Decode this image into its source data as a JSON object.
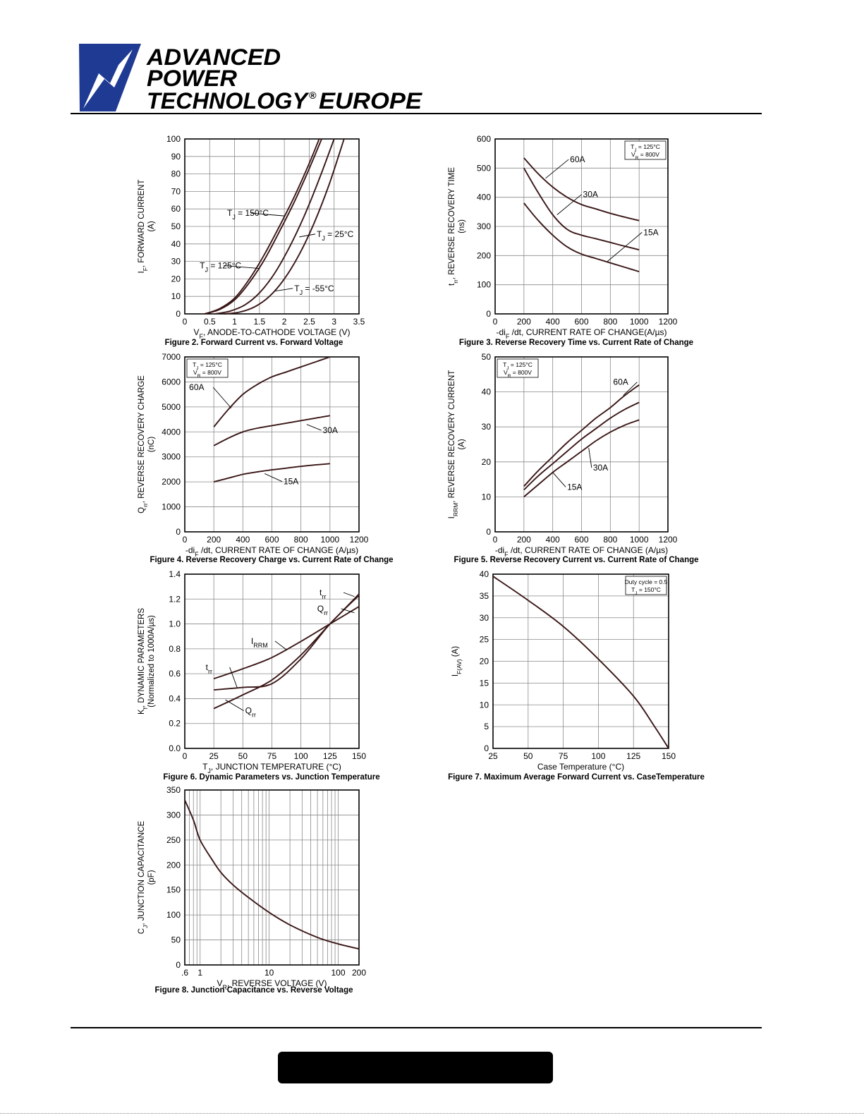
{
  "header": {
    "logo_lines": [
      "ADVANCED",
      "POWER",
      "TECHNOLOGY",
      "EUROPE"
    ],
    "registered_mark": "®",
    "brand_color": "#1f3a93"
  },
  "chart_data": [
    {
      "id": "fig2",
      "type": "line",
      "caption": "Figure 2. Forward Current vs. Forward Voltage",
      "ylabel_lines": [
        "I_F, FORWARD CURRENT",
        "(A)"
      ],
      "xlabel": "V_F, ANODE-TO-CATHODE VOLTAGE (V)",
      "xlim": [
        0,
        3.5
      ],
      "ylim": [
        0,
        100
      ],
      "xticks": [
        0,
        0.5,
        1,
        1.5,
        2,
        2.5,
        3,
        3.5
      ],
      "xtick_labels": [
        "0",
        "0.5",
        "1",
        "1.5",
        "2",
        "2.5",
        "3",
        "3.5"
      ],
      "yticks": [
        0,
        10,
        20,
        30,
        40,
        50,
        60,
        70,
        80,
        90,
        100
      ],
      "grid": true,
      "series": [
        {
          "name": "T_J = 150°C",
          "x": [
            0.4,
            0.7,
            1.0,
            1.3,
            1.6,
            1.9,
            2.2,
            2.5,
            2.7
          ],
          "y": [
            0,
            3,
            9,
            20,
            34,
            50,
            67,
            86,
            100
          ]
        },
        {
          "name": "T_J = 125°C",
          "x": [
            0.4,
            0.7,
            1.0,
            1.3,
            1.6,
            1.9,
            2.2,
            2.5,
            2.75
          ],
          "y": [
            0,
            2.5,
            8,
            18,
            31,
            47,
            64,
            83,
            100
          ]
        },
        {
          "name": "T_J = 25°C",
          "x": [
            0.6,
            0.9,
            1.2,
            1.5,
            1.8,
            2.1,
            2.4,
            2.7,
            3.0
          ],
          "y": [
            0,
            1.5,
            5,
            12,
            23,
            38,
            56,
            77,
            100
          ]
        },
        {
          "name": "T_J = -55°C",
          "x": [
            0.8,
            1.1,
            1.4,
            1.7,
            2.0,
            2.3,
            2.6,
            2.9,
            3.2
          ],
          "y": [
            0,
            1,
            4,
            10,
            20,
            34,
            52,
            74,
            100
          ]
        }
      ],
      "annotations": [
        {
          "text": "T_J = 150°C",
          "x": 0.85,
          "y": 56,
          "tx": 2.0,
          "ty": 56
        },
        {
          "text": "T_J = 25°C",
          "x": 2.65,
          "y": 44,
          "tx": 2.3,
          "ty": 44
        },
        {
          "text": "T_J = 125°C",
          "x": 0.3,
          "y": 26,
          "tx": 1.5,
          "ty": 26
        },
        {
          "text": "T_J = -55°C",
          "x": 2.2,
          "y": 13,
          "tx": 1.8,
          "ty": 13
        }
      ]
    },
    {
      "id": "fig3",
      "type": "line",
      "caption": "Figure 3. Reverse Recovery Time vs. Current Rate of Change",
      "ylabel_lines": [
        "t_rr, REVERSE RECOVERY TIME",
        "(ns)"
      ],
      "xlabel": "-di_F /dt, CURRENT RATE OF CHANGE(A/µs)",
      "xlim": [
        0,
        1200
      ],
      "ylim": [
        0,
        600
      ],
      "xticks": [
        0,
        200,
        400,
        600,
        800,
        1000,
        1200
      ],
      "yticks": [
        0,
        100,
        200,
        300,
        400,
        500,
        600
      ],
      "grid": true,
      "legend_box": [
        "T_J = 125°C",
        "V_R = 800V"
      ],
      "series": [
        {
          "name": "60A",
          "x": [
            200,
            300,
            400,
            500,
            600,
            700,
            800,
            900,
            1000
          ],
          "y": [
            535,
            480,
            435,
            400,
            375,
            360,
            345,
            332,
            320
          ]
        },
        {
          "name": "30A",
          "x": [
            200,
            300,
            400,
            500,
            600,
            700,
            800,
            900,
            1000
          ],
          "y": [
            500,
            415,
            340,
            290,
            270,
            258,
            245,
            232,
            220
          ]
        },
        {
          "name": "15A",
          "x": [
            200,
            300,
            400,
            500,
            600,
            700,
            800,
            900,
            1000
          ],
          "y": [
            380,
            320,
            270,
            230,
            205,
            190,
            175,
            160,
            145
          ]
        }
      ],
      "annotations": [
        {
          "text": "60A",
          "x": 520,
          "y": 520,
          "tx": 350,
          "ty": 465
        },
        {
          "text": "30A",
          "x": 610,
          "y": 400,
          "tx": 430,
          "ty": 340
        },
        {
          "text": "15A",
          "x": 1030,
          "y": 270,
          "tx": 780,
          "ty": 180
        }
      ]
    },
    {
      "id": "fig4",
      "type": "line",
      "caption": "Figure 4. Reverse Recovery Charge vs. Current Rate of Change",
      "ylabel_lines": [
        "Q_rr, REVERSE RECOVERY CHARGE",
        "(nC)"
      ],
      "xlabel": "-di_F /dt, CURRENT RATE OF CHANGE (A/µs)",
      "xlim": [
        0,
        1200
      ],
      "ylim": [
        0,
        7000
      ],
      "xticks": [
        0,
        200,
        400,
        600,
        800,
        1000,
        1200
      ],
      "yticks": [
        0,
        1000,
        2000,
        3000,
        4000,
        5000,
        6000,
        7000
      ],
      "grid": true,
      "legend_box": [
        "T_J = 125°C",
        "V_R = 800V"
      ],
      "series": [
        {
          "name": "60A",
          "x": [
            200,
            300,
            400,
            500,
            600,
            700,
            800,
            900,
            1000
          ],
          "y": [
            4200,
            4900,
            5500,
            5900,
            6200,
            6400,
            6600,
            6800,
            7000
          ]
        },
        {
          "name": "30A",
          "x": [
            200,
            300,
            400,
            500,
            600,
            700,
            800,
            900,
            1000
          ],
          "y": [
            3450,
            3750,
            4000,
            4150,
            4250,
            4350,
            4450,
            4550,
            4650
          ]
        },
        {
          "name": "15A",
          "x": [
            200,
            300,
            400,
            500,
            600,
            700,
            800,
            900,
            1000
          ],
          "y": [
            2000,
            2150,
            2300,
            2400,
            2480,
            2550,
            2620,
            2680,
            2730
          ]
        }
      ],
      "annotations": [
        {
          "text": "60A",
          "x": 30,
          "y": 5670,
          "tx": 320,
          "ty": 4950
        },
        {
          "text": "30A",
          "x": 950,
          "y": 3950,
          "tx": 840,
          "ty": 4300
        },
        {
          "text": "15A",
          "x": 680,
          "y": 1900,
          "tx": 550,
          "ty": 2330
        }
      ]
    },
    {
      "id": "fig5",
      "type": "line",
      "caption": "Figure 5. Reverse Recovery Current vs. Current Rate of Change",
      "ylabel_lines": [
        "I_RRM, REVERSE RECOVERY CURRENT",
        "(A)"
      ],
      "xlabel": "-di_F /dt, CURRENT RATE OF CHANGE (A/µs)",
      "xlim": [
        0,
        1200
      ],
      "ylim": [
        0,
        50
      ],
      "xticks": [
        0,
        200,
        400,
        600,
        800,
        1000,
        1200
      ],
      "yticks": [
        0,
        10,
        20,
        30,
        40,
        50
      ],
      "grid": true,
      "legend_box": [
        "T_J = 125°C",
        "V_R = 800V"
      ],
      "series": [
        {
          "name": "60A",
          "x": [
            200,
            300,
            400,
            500,
            600,
            700,
            800,
            900,
            1000
          ],
          "y": [
            13,
            17.5,
            21.5,
            25.5,
            29,
            32.5,
            35.5,
            39,
            42
          ]
        },
        {
          "name": "30A",
          "x": [
            200,
            300,
            400,
            500,
            600,
            700,
            800,
            900,
            1000
          ],
          "y": [
            12,
            16,
            19.5,
            23,
            26.5,
            29.5,
            32.5,
            35,
            37
          ]
        },
        {
          "name": "15A",
          "x": [
            200,
            300,
            400,
            500,
            600,
            700,
            800,
            900,
            1000
          ],
          "y": [
            10,
            13.5,
            17,
            20,
            23,
            26,
            28.5,
            30.5,
            32
          ]
        }
      ],
      "annotations": [
        {
          "text": "60A",
          "x": 820,
          "y": 42,
          "tx": 890,
          "ty": 39
        },
        {
          "text": "30A",
          "x": 680,
          "y": 17.5,
          "tx": 650,
          "ty": 24
        },
        {
          "text": "15A",
          "x": 500,
          "y": 12,
          "tx": 400,
          "ty": 17
        }
      ]
    },
    {
      "id": "fig6",
      "type": "line",
      "caption": "Figure 6. Dynamic Parameters vs. Junction Temperature",
      "ylabel_lines": [
        "K_f, DYNAMIC PARAMETERS",
        "(Normalized to 1000A/µs)"
      ],
      "xlabel": "T_J, JUNCTION TEMPERATURE (°C)",
      "xlim": [
        0,
        150
      ],
      "ylim": [
        0,
        1.4
      ],
      "xticks": [
        0,
        25,
        50,
        75,
        100,
        125,
        150
      ],
      "yticks": [
        0.0,
        0.2,
        0.4,
        0.6,
        0.8,
        1.0,
        1.2,
        1.4
      ],
      "ytick_labels": [
        "0.0",
        "0.2",
        "0.4",
        "0.6",
        "0.8",
        "1.0",
        "1.2",
        "1.4"
      ],
      "grid": true,
      "series": [
        {
          "name": "I_RRM",
          "x": [
            25,
            50,
            75,
            100,
            125,
            150
          ],
          "y": [
            0.56,
            0.64,
            0.73,
            0.86,
            1.0,
            1.14
          ]
        },
        {
          "name": "t_rr",
          "x": [
            25,
            50,
            75,
            100,
            125,
            150
          ],
          "y": [
            0.47,
            0.49,
            0.52,
            0.72,
            1.0,
            1.23
          ]
        },
        {
          "name": "Q_rr",
          "x": [
            25,
            50,
            75,
            100,
            125,
            150
          ],
          "y": [
            0.32,
            0.43,
            0.55,
            0.75,
            1.0,
            1.24
          ]
        }
      ],
      "annotations": [
        {
          "text": "t_rr",
          "x": 116,
          "y": 1.23,
          "tx": 146,
          "ty": 1.22
        },
        {
          "text": "Q_rr",
          "x": 114,
          "y": 1.1,
          "tx": 146,
          "ty": 1.09
        },
        {
          "text": "I_RRM",
          "x": 57,
          "y": 0.84,
          "tx": 88,
          "ty": 0.79
        },
        {
          "text": "t_rr",
          "x": 18,
          "y": 0.63,
          "tx": 45,
          "ty": 0.49
        },
        {
          "text": "Q_rr",
          "x": 52,
          "y": 0.28,
          "tx": 35,
          "ty": 0.39
        }
      ]
    },
    {
      "id": "fig7",
      "type": "line",
      "caption": "Figure 7. Maximum Average Forward Current vs. CaseTemperature",
      "ylabel_lines": [
        "I_F(AV) (A)"
      ],
      "xlabel": "Case Temperature (°C)",
      "xlim": [
        25,
        150
      ],
      "ylim": [
        0,
        40
      ],
      "xticks": [
        25,
        50,
        75,
        100,
        125,
        150
      ],
      "yticks": [
        0,
        5,
        10,
        15,
        20,
        25,
        30,
        35,
        40
      ],
      "grid": true,
      "legend_box": [
        "Duty cycle = 0.5",
        "T_J = 150°C"
      ],
      "series": [
        {
          "name": "",
          "x": [
            25,
            50,
            75,
            100,
            125,
            140,
            150
          ],
          "y": [
            39.5,
            34,
            28,
            20.5,
            12,
            5,
            0
          ]
        }
      ],
      "annotations": []
    },
    {
      "id": "fig8",
      "type": "line",
      "caption": "Figure 8.  Junction Capacitance vs. Reverse Voltage",
      "ylabel_lines": [
        "C_J, JUNCTION CAPACITANCE",
        "(pF)"
      ],
      "xlabel": "V_R, REVERSE VOLTAGE (V)",
      "xscale": "log",
      "xlim": [
        0.6,
        200
      ],
      "ylim": [
        0,
        350
      ],
      "xticks": [
        0.6,
        1,
        10,
        100,
        200
      ],
      "xtick_labels": [
        ".6",
        "1",
        "10",
        "100",
        "200"
      ],
      "yticks": [
        0,
        50,
        100,
        150,
        200,
        250,
        300,
        350
      ],
      "grid": true,
      "series": [
        {
          "name": "",
          "x": [
            0.6,
            0.8,
            1.0,
            1.5,
            2,
            3,
            5,
            10,
            20,
            50,
            100,
            200
          ],
          "y": [
            330,
            290,
            250,
            210,
            185,
            160,
            135,
            105,
            80,
            55,
            42,
            32
          ]
        }
      ],
      "annotations": []
    }
  ]
}
